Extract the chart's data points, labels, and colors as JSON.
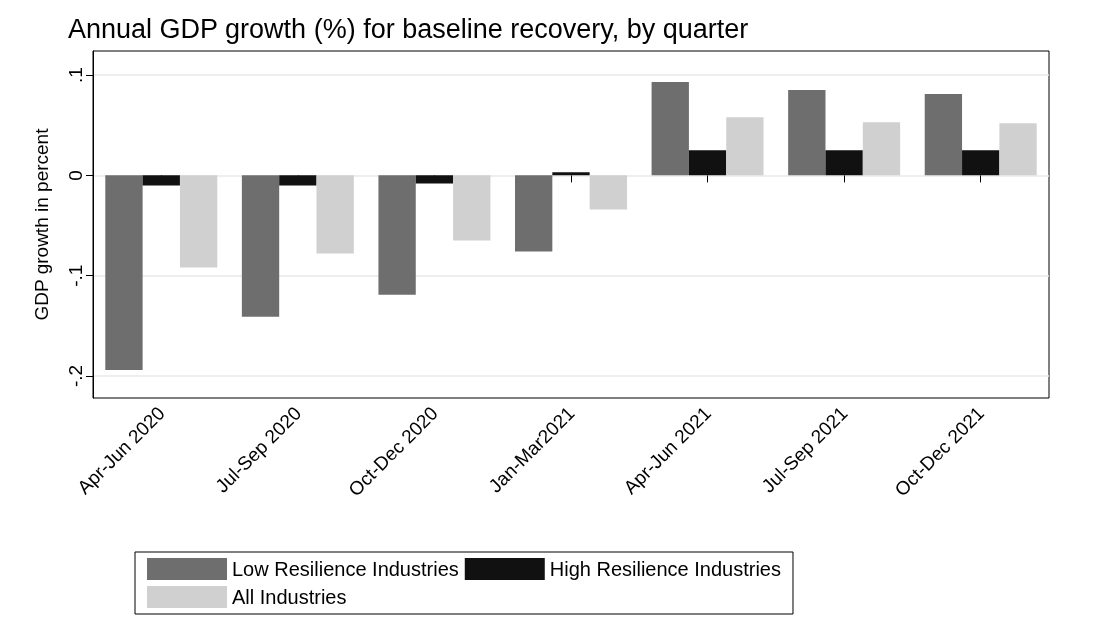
{
  "chart_data": {
    "type": "bar",
    "title": "Annual GDP growth (%) for baseline recovery, by quarter",
    "ylabel": "GDP growth in percent",
    "categories": [
      "Apr-Jun 2020",
      "Jul-Sep 2020",
      "Oct-Dec 2020",
      "Jan-Mar2021",
      "Apr-Jun 2021",
      "Jul-Sep 2021",
      "Oct-Dec 2021"
    ],
    "series": [
      {
        "name": "Low Resilience Industries",
        "color": "#6e6e6e",
        "values": [
          -0.194,
          -0.141,
          -0.119,
          -0.076,
          0.093,
          0.085,
          0.081
        ]
      },
      {
        "name": "High Resilience Industries",
        "color": "#111111",
        "values": [
          -0.01,
          -0.01,
          -0.008,
          0.003,
          0.025,
          0.025,
          0.025
        ]
      },
      {
        "name": "All Industries",
        "color": "#d0d0d0",
        "values": [
          -0.092,
          -0.078,
          -0.065,
          -0.034,
          0.058,
          0.053,
          0.052
        ]
      }
    ],
    "ylim": [
      -0.222,
      0.124
    ],
    "yticks": [
      {
        "value": -0.2,
        "label": "-.2"
      },
      {
        "value": -0.1,
        "label": "-.1"
      },
      {
        "value": 0,
        "label": "0"
      },
      {
        "value": 0.1,
        "label": ".1"
      }
    ],
    "grid": "y",
    "legend": "bottom"
  }
}
